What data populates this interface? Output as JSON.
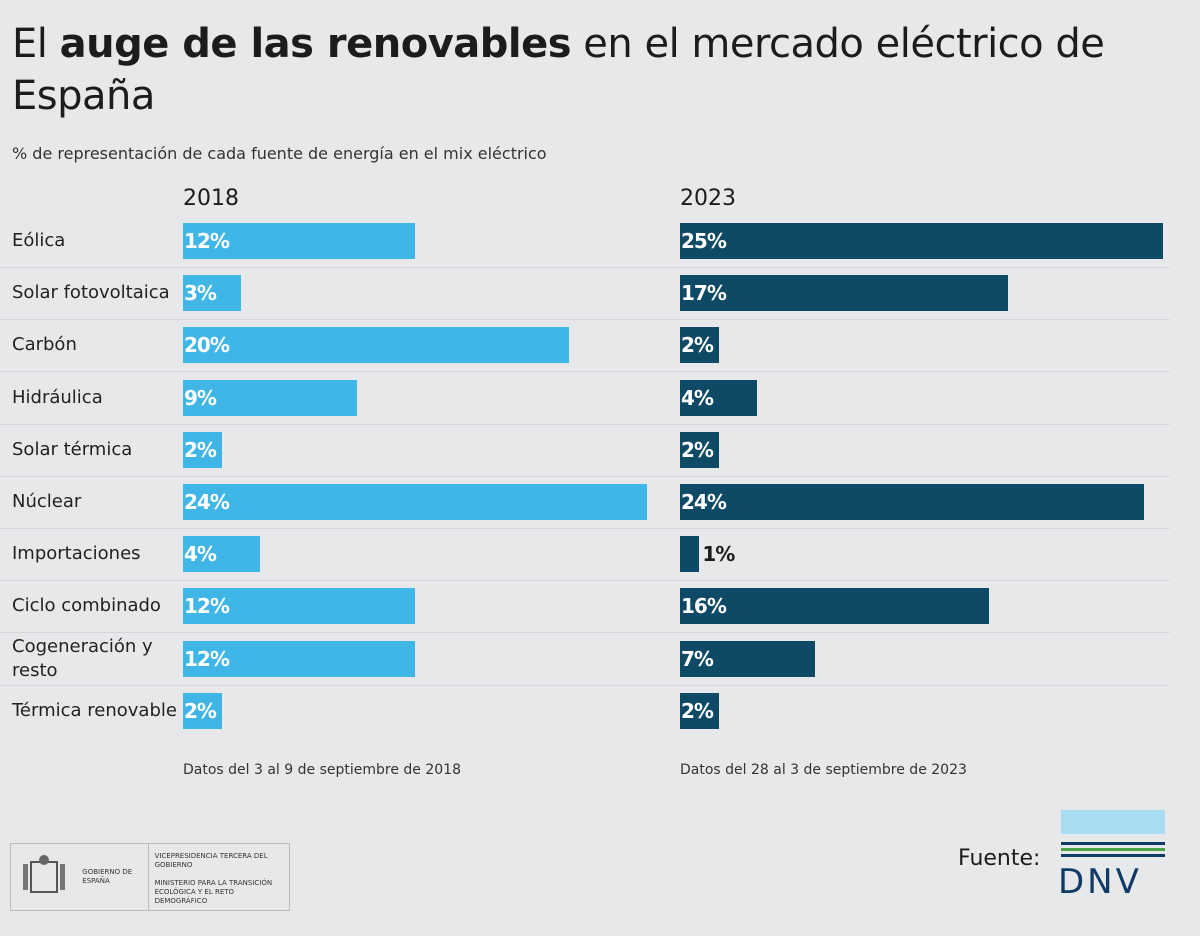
{
  "title": [
    "El",
    "auge de las renovables",
    "en el mercado eléctrico de España"
  ],
  "subtitle": "% de representación de cada fuente de energía en el mix eléctrico",
  "chart_data": [
    {
      "type": "bar",
      "orientation": "horizontal",
      "title": "2018",
      "color": "#3fb6e6",
      "categories": [
        "Eólica",
        "Solar fotovoltaica",
        "Carbón",
        "Hidráulica",
        "Solar térmica",
        "Núclear",
        "Importaciones",
        "Ciclo combinado",
        "Cogeneración y resto",
        "Térmica renovable"
      ],
      "values": [
        12,
        3,
        20,
        9,
        2,
        24,
        4,
        12,
        12,
        2
      ],
      "value_labels": [
        "12%",
        "3%",
        "20%",
        "9%",
        "2%",
        "24%",
        "4%",
        "12%",
        "12%",
        "2%"
      ],
      "xlim": [
        0,
        25
      ],
      "note": "Datos del 3 al 9 de septiembre de 2018"
    },
    {
      "type": "bar",
      "orientation": "horizontal",
      "title": "2023",
      "color": "#0e4a66",
      "values": [
        25,
        17,
        2,
        4,
        2,
        24,
        1,
        16,
        7,
        2
      ],
      "value_labels": [
        "25%",
        "17%",
        "2%",
        "4%",
        "2%",
        "24%",
        "1%",
        "16%",
        "7%",
        "2%"
      ],
      "xlim": [
        0,
        25
      ],
      "note": "Datos del 28 al 3 de septiembre de 2023"
    }
  ],
  "footer": {
    "gov": "GOBIERNO DE ESPAÑA",
    "vice": "VICEPRESIDENCIA TERCERA DEL GOBIERNO",
    "ministry": "MINISTERIO PARA LA TRANSICIÓN ECOLÓGICA Y EL RETO DEMOGRÁFICO",
    "source_label": "Fuente:",
    "source": "DNV"
  }
}
